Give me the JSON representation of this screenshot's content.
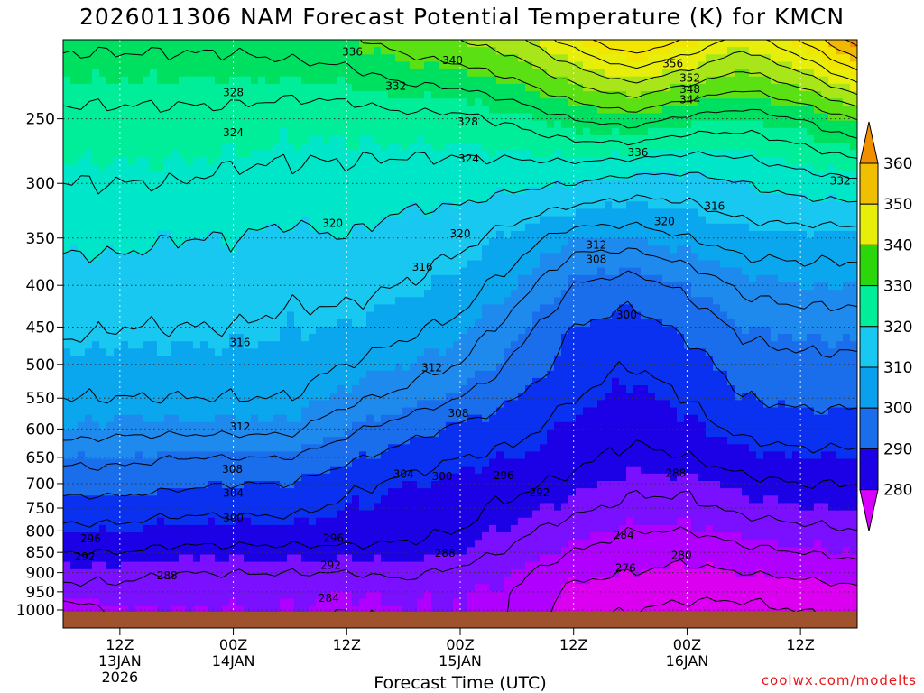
{
  "title": "2026011306 NAM Forecast Potential Temperature (K) for KMCN",
  "xlabel": "Forecast Time (UTC)",
  "credit": "coolwx.com/modelts",
  "colors": {
    "ground": "#a0522d",
    "colorbar": [
      "#d900ff",
      "#8000ff",
      "#1c00e6",
      "#1a6eec",
      "#0aa0ee",
      "#19c8f0",
      "#00ee9a",
      "#2bd60a",
      "#e6ee0a",
      "#f0c000",
      "#f09000"
    ],
    "band_colors": {
      "275": "#dc00f0",
      "280": "#b000ff",
      "285": "#7a10ff",
      "290": "#1c00e6",
      "295": "#0a30f0",
      "300": "#1a6eec",
      "305": "#1e8aee",
      "310": "#0aa6ee",
      "315": "#19c8f0",
      "320": "#00e6c8",
      "325": "#00ee9a",
      "330": "#00e060",
      "335": "#5be014",
      "340": "#a8e61a",
      "345": "#e6ee0a",
      "350": "#f2e600",
      "355": "#f0b800",
      "360": "#f09000"
    }
  },
  "chart_data": {
    "type": "heatmap",
    "title": "2026011306 NAM Forecast Potential Temperature (K) for KMCN",
    "xlabel": "Forecast Time (UTC)",
    "ylabel": "",
    "x_ticks": [
      {
        "t": 6,
        "label": [
          "12Z",
          "13JAN",
          "2026"
        ]
      },
      {
        "t": 18,
        "label": [
          "00Z",
          "14JAN"
        ]
      },
      {
        "t": 30,
        "label": [
          "12Z"
        ]
      },
      {
        "t": 42,
        "label": [
          "00Z",
          "15JAN"
        ]
      },
      {
        "t": 54,
        "label": [
          "12Z"
        ]
      },
      {
        "t": 66,
        "label": [
          "00Z",
          "16JAN"
        ]
      },
      {
        "t": 78,
        "label": [
          "12Z"
        ]
      }
    ],
    "xlim_hours": [
      0,
      84
    ],
    "y_ticks": [
      250,
      300,
      350,
      400,
      450,
      500,
      550,
      600,
      650,
      700,
      750,
      800,
      850,
      900,
      950,
      1000
    ],
    "ylim_hPa": [
      1000,
      200
    ],
    "log_pressure_axis": true,
    "colorbar": {
      "levels": [
        280,
        290,
        300,
        310,
        320,
        330,
        340,
        350,
        360
      ],
      "extend": "both"
    },
    "contour_interval_K": 4,
    "pressure_levels": [
      1000,
      950,
      900,
      850,
      800,
      750,
      700,
      650,
      600,
      550,
      500,
      450,
      400,
      350,
      300,
      250,
      200
    ],
    "times_hours": [
      0,
      6,
      12,
      18,
      24,
      30,
      36,
      42,
      48,
      54,
      60,
      66,
      72,
      78,
      84
    ],
    "theta_K": [
      [
        281,
        285,
        285,
        285,
        285,
        284,
        285,
        285,
        284,
        277,
        276,
        275,
        275,
        276,
        277
      ],
      [
        287,
        287,
        286,
        286,
        286,
        285,
        286,
        285,
        284,
        279,
        278,
        277,
        277,
        278,
        279
      ],
      [
        289,
        289,
        288,
        288,
        288,
        288,
        289,
        287,
        285,
        281,
        280,
        279,
        280,
        281,
        282
      ],
      [
        292,
        292,
        291,
        291,
        291,
        291,
        291,
        290,
        287,
        284,
        282,
        281,
        283,
        284,
        285
      ],
      [
        295,
        295,
        294,
        294,
        294,
        294,
        293,
        292,
        289,
        286,
        284,
        284,
        286,
        287,
        288
      ],
      [
        298,
        298,
        297,
        297,
        297,
        295,
        294,
        293,
        291,
        289,
        287,
        287,
        289,
        290,
        290
      ],
      [
        302,
        302,
        301,
        300,
        300,
        297,
        295,
        294,
        293,
        291,
        289,
        289,
        291,
        292,
        292
      ],
      [
        305,
        305,
        304,
        304,
        304,
        301,
        298,
        296,
        295,
        293,
        291,
        292,
        294,
        295,
        295
      ],
      [
        310,
        309,
        309,
        309,
        309,
        305,
        302,
        299,
        297,
        294,
        293,
        294,
        297,
        298,
        298
      ],
      [
        312,
        312,
        312,
        312,
        312,
        309,
        307,
        304,
        300,
        296,
        294,
        296,
        300,
        301,
        301
      ],
      [
        314,
        314,
        314,
        314,
        314,
        312,
        310,
        308,
        303,
        298,
        296,
        298,
        302,
        303,
        303
      ],
      [
        317,
        316,
        316,
        316,
        315,
        315,
        313,
        311,
        306,
        300,
        298,
        301,
        305,
        306,
        306
      ],
      [
        318,
        318,
        318,
        318,
        317,
        317,
        316,
        314,
        310,
        304,
        302,
        305,
        309,
        310,
        310
      ],
      [
        321,
        321,
        320,
        320,
        319,
        320,
        318,
        317,
        314,
        310,
        310,
        312,
        314,
        314,
        314
      ],
      [
        324,
        324,
        324,
        323,
        323,
        323,
        322,
        322,
        321,
        320,
        318,
        318,
        320,
        322,
        323
      ],
      [
        327,
        327,
        327,
        327,
        326,
        326,
        327,
        327,
        329,
        332,
        334,
        331,
        330,
        332,
        336
      ],
      [
        333,
        333,
        333,
        333,
        334,
        335,
        338,
        340,
        343,
        350,
        356,
        352,
        346,
        352,
        362
      ]
    ],
    "contour_labels": [
      {
        "value": "336",
        "t": 30.6,
        "p": 207
      },
      {
        "value": "340",
        "t": 41.2,
        "p": 212
      },
      {
        "value": "332",
        "t": 35.2,
        "p": 228
      },
      {
        "value": "328",
        "t": 18.0,
        "p": 232
      },
      {
        "value": "356",
        "t": 64.5,
        "p": 214
      },
      {
        "value": "352",
        "t": 66.3,
        "p": 223
      },
      {
        "value": "348",
        "t": 66.3,
        "p": 230
      },
      {
        "value": "344",
        "t": 66.3,
        "p": 237
      },
      {
        "value": "328",
        "t": 42.8,
        "p": 252
      },
      {
        "value": "324",
        "t": 18.0,
        "p": 260
      },
      {
        "value": "324",
        "t": 42.9,
        "p": 280
      },
      {
        "value": "336",
        "t": 60.8,
        "p": 275
      },
      {
        "value": "332",
        "t": 82.2,
        "p": 298
      },
      {
        "value": "316",
        "t": 68.9,
        "p": 320
      },
      {
        "value": "320",
        "t": 28.5,
        "p": 336
      },
      {
        "value": "320",
        "t": 63.6,
        "p": 334
      },
      {
        "value": "320",
        "t": 42.0,
        "p": 346
      },
      {
        "value": "312",
        "t": 56.4,
        "p": 357
      },
      {
        "value": "308",
        "t": 56.4,
        "p": 372
      },
      {
        "value": "316",
        "t": 38.0,
        "p": 380
      },
      {
        "value": "300",
        "t": 59.6,
        "p": 435
      },
      {
        "value": "316",
        "t": 18.7,
        "p": 470
      },
      {
        "value": "312",
        "t": 39.0,
        "p": 505
      },
      {
        "value": "308",
        "t": 41.8,
        "p": 574
      },
      {
        "value": "312",
        "t": 18.7,
        "p": 596
      },
      {
        "value": "288",
        "t": 64.8,
        "p": 680
      },
      {
        "value": "308",
        "t": 17.9,
        "p": 672
      },
      {
        "value": "304",
        "t": 36.0,
        "p": 682
      },
      {
        "value": "300",
        "t": 40.1,
        "p": 686
      },
      {
        "value": "296",
        "t": 46.6,
        "p": 684
      },
      {
        "value": "304",
        "t": 18.0,
        "p": 719
      },
      {
        "value": "292",
        "t": 50.4,
        "p": 718
      },
      {
        "value": "300",
        "t": 18.0,
        "p": 771
      },
      {
        "value": "296",
        "t": 2.9,
        "p": 818
      },
      {
        "value": "296",
        "t": 28.6,
        "p": 817
      },
      {
        "value": "284",
        "t": 59.3,
        "p": 809
      },
      {
        "value": "292",
        "t": 2.3,
        "p": 861
      },
      {
        "value": "288",
        "t": 40.4,
        "p": 852
      },
      {
        "value": "280",
        "t": 65.4,
        "p": 857
      },
      {
        "value": "292",
        "t": 28.3,
        "p": 882
      },
      {
        "value": "276",
        "t": 59.5,
        "p": 888
      },
      {
        "value": "288",
        "t": 11.0,
        "p": 908
      },
      {
        "value": "284",
        "t": 28.1,
        "p": 968
      }
    ]
  }
}
